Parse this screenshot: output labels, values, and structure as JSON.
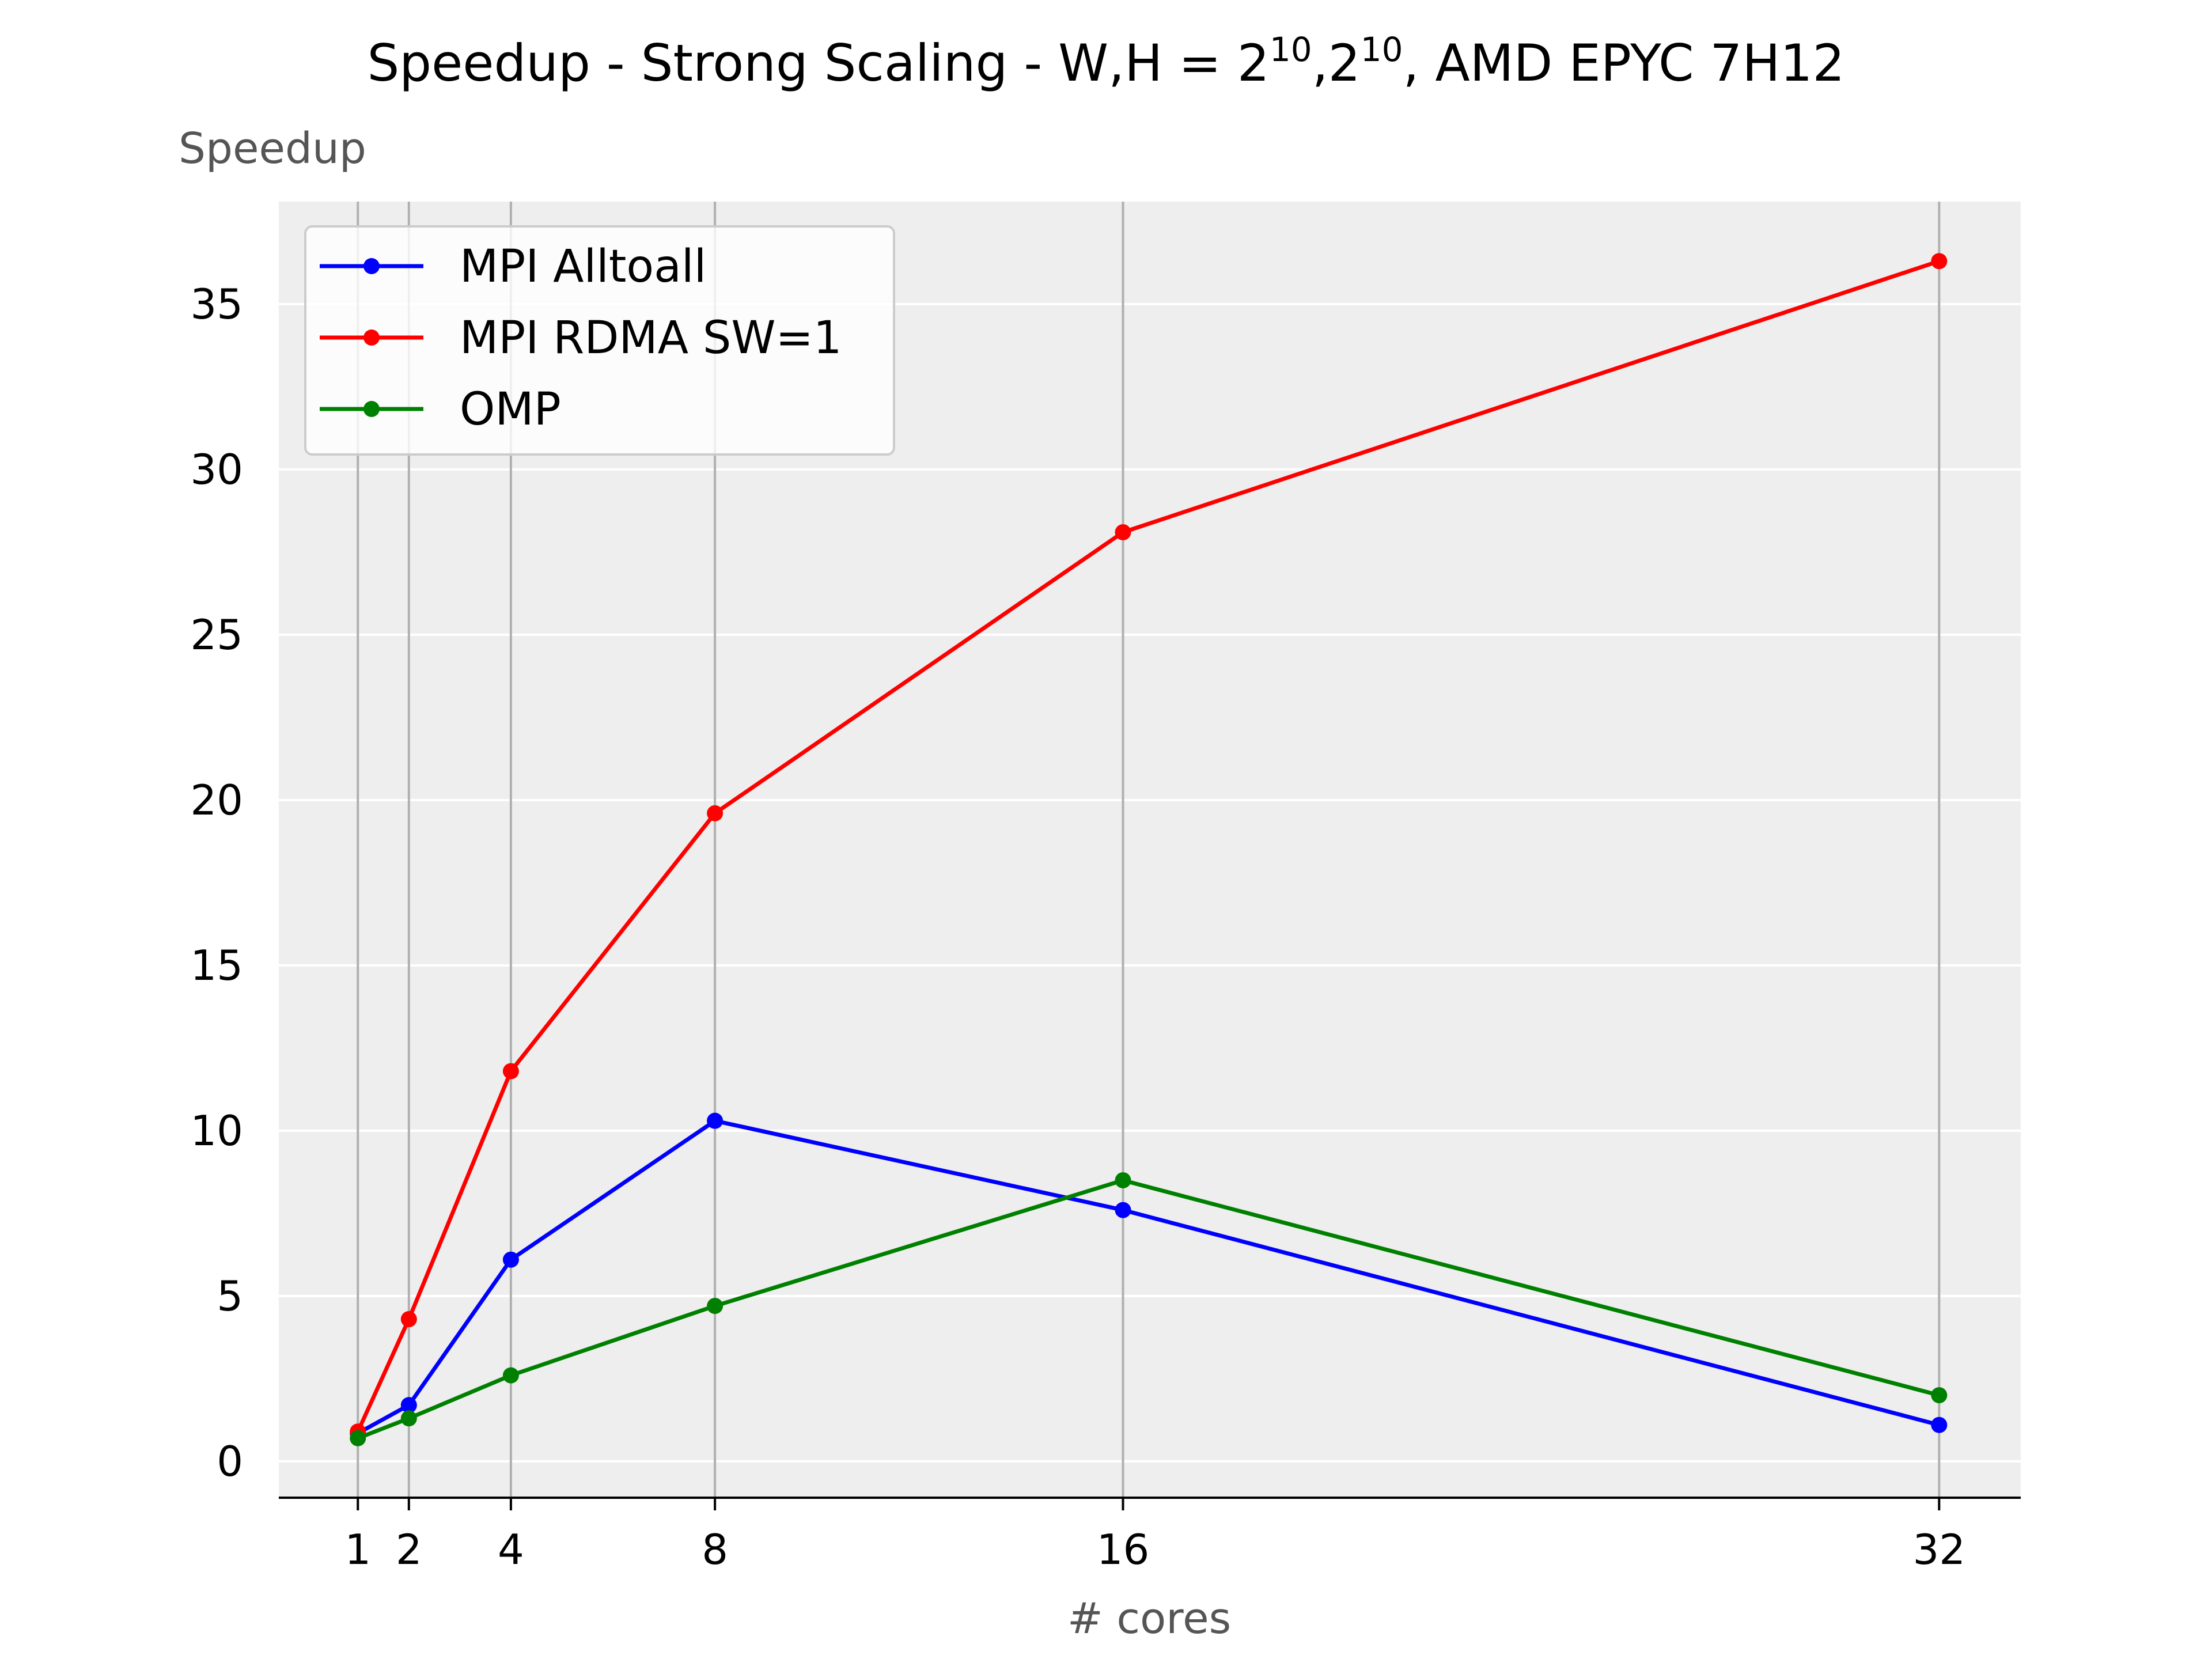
{
  "chart_data": {
    "type": "line",
    "title": {
      "prefix": "Speedup - Strong Scaling - W,H = 2",
      "sup1": "10",
      "middle": ",2",
      "sup2": "10",
      "suffix": ", AMD EPYC 7H12"
    },
    "xlabel": "# cores",
    "ylabel": "Speedup",
    "x": [
      1,
      2,
      4,
      8,
      16,
      32
    ],
    "x_ticks": [
      "1",
      "2",
      "4",
      "8",
      "16",
      "32"
    ],
    "xlim": [
      -0.55,
      33.6
    ],
    "y_ticks": [
      "0",
      "5",
      "10",
      "15",
      "20",
      "25",
      "30",
      "35"
    ],
    "y_tick_values": [
      0,
      5,
      10,
      15,
      20,
      25,
      30,
      35
    ],
    "ylim": [
      -1.1,
      38.1
    ],
    "grid": true,
    "legend_position": "top-left",
    "series": [
      {
        "name": "MPI Alltoall",
        "color": "#0000ff",
        "values": [
          0.85,
          1.7,
          6.1,
          10.3,
          7.6,
          1.1
        ]
      },
      {
        "name": "MPI RDMA SW=1",
        "color": "#ff0000",
        "values": [
          0.9,
          4.3,
          11.8,
          19.6,
          28.1,
          36.3
        ]
      },
      {
        "name": "OMP",
        "color": "#008000",
        "values": [
          0.7,
          1.3,
          2.6,
          4.7,
          8.5,
          2.0
        ]
      }
    ]
  }
}
